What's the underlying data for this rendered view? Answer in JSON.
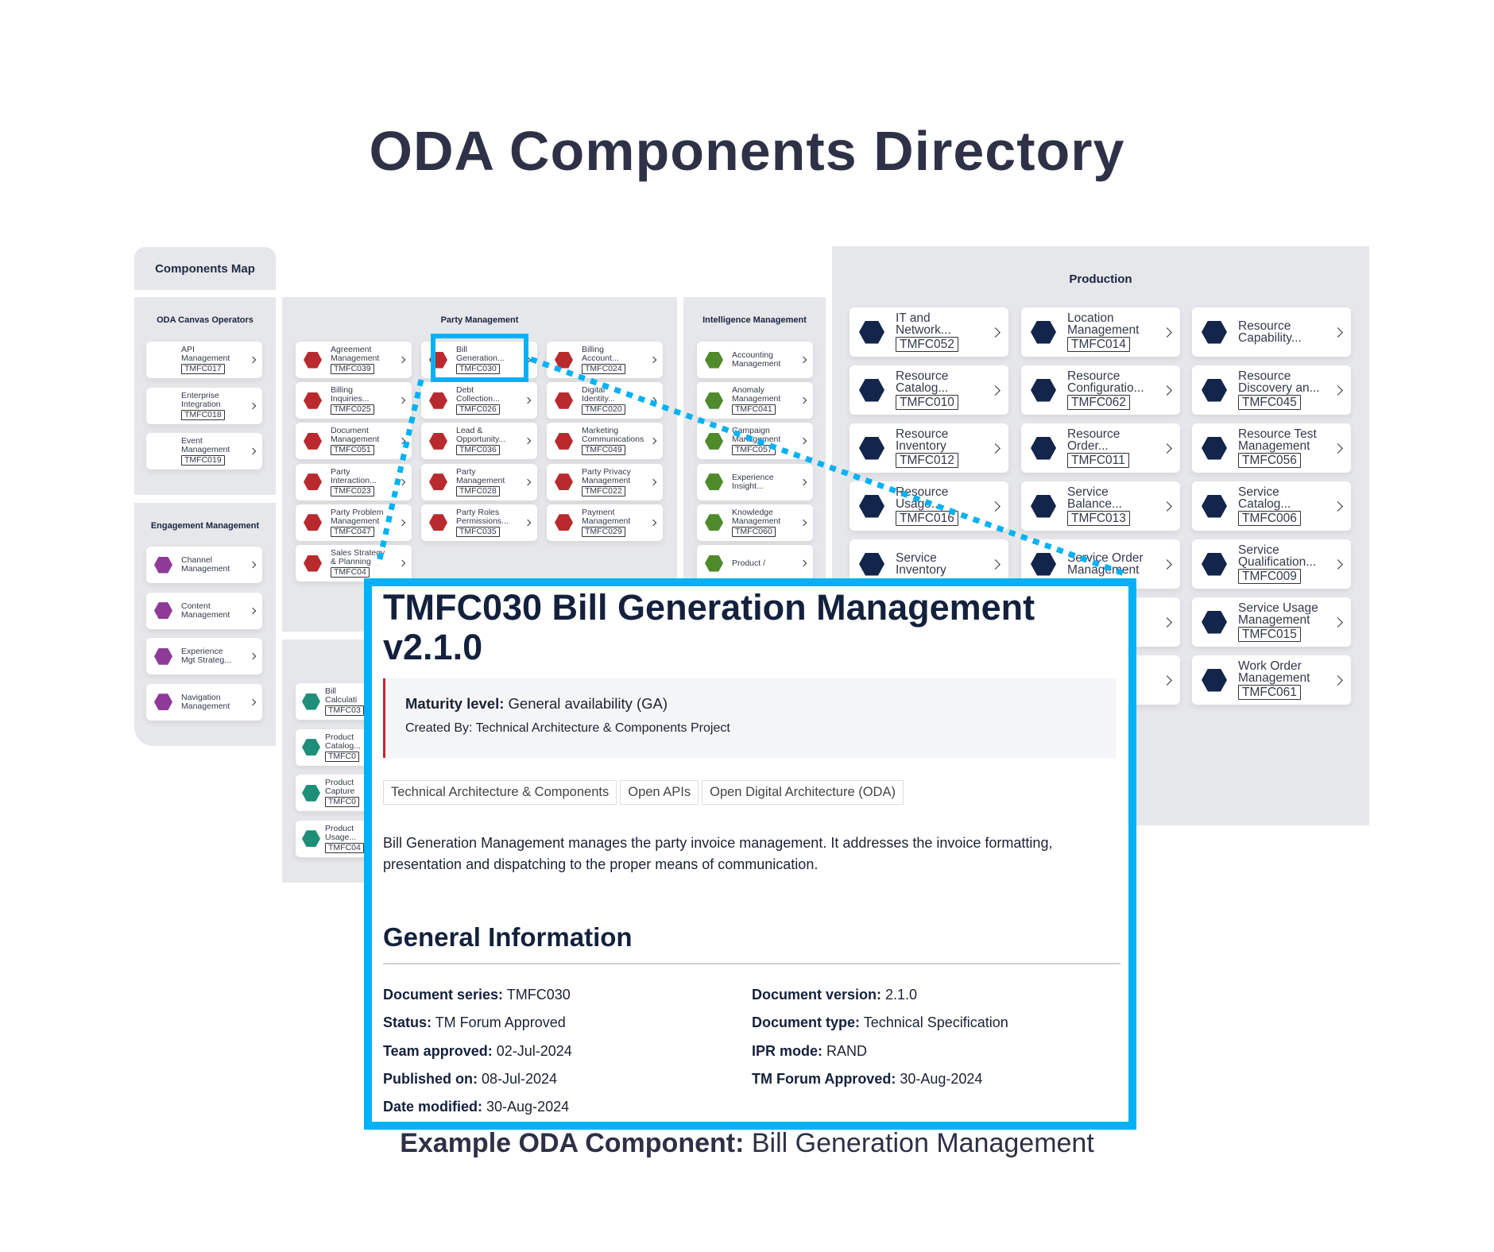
{
  "title": "ODA Components Directory",
  "tab_label": "Components Map",
  "colors": {
    "canvas": "#e2b92a",
    "engagement": "#8e3a99",
    "party": "#b92a2e",
    "intelligence": "#4f8a2b",
    "lower": "#1d8f78",
    "production": "#13254a",
    "accent": "#00b2f5"
  },
  "panels": {
    "oda": {
      "title": "ODA Canvas Operators",
      "items": [
        {
          "lines": [
            "API",
            "Management"
          ],
          "code": "TMFC017"
        },
        {
          "lines": [
            "Enterprise",
            "Integration"
          ],
          "code": "TMFC018"
        },
        {
          "lines": [
            "Event",
            "Management"
          ],
          "code": "TMFC019"
        }
      ]
    },
    "engagement": {
      "title": "Engagement Management",
      "items": [
        {
          "lines": [
            "Channel",
            "Management"
          ]
        },
        {
          "lines": [
            "Content",
            "Management"
          ]
        },
        {
          "lines": [
            "Experience",
            "Mgt Strateg..."
          ]
        },
        {
          "lines": [
            "Navigation",
            "Management"
          ]
        }
      ]
    },
    "party": {
      "title": "Party Management",
      "items": [
        {
          "lines": [
            "Agreement",
            "Management"
          ],
          "code": "TMFC039"
        },
        {
          "lines": [
            "Bill",
            "Generation..."
          ],
          "code": "TMFC030"
        },
        {
          "lines": [
            "Billing",
            "Account..."
          ],
          "code": "TMFC024"
        },
        {
          "lines": [
            "Billing",
            "Inquiries..."
          ],
          "code": "TMFC025"
        },
        {
          "lines": [
            "Debt",
            "Collection..."
          ],
          "code": "TMFC026"
        },
        {
          "lines": [
            "Digital",
            "Identity..."
          ],
          "code": "TMFC020"
        },
        {
          "lines": [
            "Document",
            "Management"
          ],
          "code": "TMFC051"
        },
        {
          "lines": [
            "Lead &",
            "Opportunity..."
          ],
          "code": "TMFC036"
        },
        {
          "lines": [
            "Marketing",
            "Communications"
          ],
          "code": "TMFC049"
        },
        {
          "lines": [
            "Party",
            "Interaction..."
          ],
          "code": "TMFC023"
        },
        {
          "lines": [
            "Party",
            "Management"
          ],
          "code": "TMFC028"
        },
        {
          "lines": [
            "Party Privacy",
            "Management"
          ],
          "code": "TMFC022"
        },
        {
          "lines": [
            "Party Problem",
            "Management"
          ],
          "code": "TMFC047"
        },
        {
          "lines": [
            "Party Roles",
            "Permissions..."
          ],
          "code": "TMFC035"
        },
        {
          "lines": [
            "Payment",
            "Management"
          ],
          "code": "TMFC029"
        },
        {
          "lines": [
            "Sales Strategy",
            "& Planning"
          ],
          "code": "TMFC04"
        }
      ]
    },
    "lower": {
      "items": [
        {
          "lines": [
            "Bill",
            "Calculati"
          ],
          "code": "TMFC03"
        },
        {
          "lines": [
            "Product",
            "Catalog..."
          ],
          "code": "TMFC0"
        },
        {
          "lines": [
            "Product",
            "Capture"
          ],
          "code": "TMFC0"
        },
        {
          "lines": [
            "Product",
            "Usage..."
          ],
          "code": "TMFC04"
        }
      ]
    },
    "intelligence": {
      "title": "Intelligence Management",
      "items": [
        {
          "lines": [
            "Accounting",
            "Management"
          ]
        },
        {
          "lines": [
            "Anomaly",
            "Management"
          ],
          "code": "TMFC041"
        },
        {
          "lines": [
            "Campaign",
            "Management"
          ],
          "code": "TMFC057"
        },
        {
          "lines": [
            "Experience",
            "Insight..."
          ]
        },
        {
          "lines": [
            "Knowledge",
            "Management"
          ],
          "code": "TMFC060"
        },
        {
          "lines": [
            "Product /"
          ]
        }
      ]
    },
    "production": {
      "title": "Production",
      "items": [
        {
          "lines": [
            "IT and",
            "Network..."
          ],
          "code": "TMFC052"
        },
        {
          "lines": [
            "Location",
            "Management"
          ],
          "code": "TMFC014"
        },
        {
          "lines": [
            "Resource",
            "Capability..."
          ]
        },
        {
          "lines": [
            "Resource",
            "Catalog..."
          ],
          "code": "TMFC010"
        },
        {
          "lines": [
            "Resource",
            "Configuratio..."
          ],
          "code": "TMFC062"
        },
        {
          "lines": [
            "Resource",
            "Discovery an..."
          ],
          "code": "TMFC045"
        },
        {
          "lines": [
            "Resource",
            "Inventory"
          ],
          "code": "TMFC012"
        },
        {
          "lines": [
            "Resource",
            "Order..."
          ],
          "code": "TMFC011"
        },
        {
          "lines": [
            "Resource Test",
            "Management"
          ],
          "code": "TMFC056"
        },
        {
          "lines": [
            "Resource",
            "Usage..."
          ],
          "code": "TMFC016"
        },
        {
          "lines": [
            "Service",
            "Balance..."
          ],
          "code": "TMFC013"
        },
        {
          "lines": [
            "Service",
            "Catalog..."
          ],
          "code": "TMFC006"
        },
        {
          "lines": [
            "Service",
            "Inventory"
          ]
        },
        {
          "lines": [
            "Service Order",
            "Management"
          ]
        },
        {
          "lines": [
            "Service",
            "Qualification..."
          ],
          "code": "TMFC009"
        },
        {
          "lines": []
        },
        {
          "lines": []
        },
        {
          "lines": [
            "Service Usage",
            "Management"
          ],
          "code": "TMFC015"
        },
        {
          "lines": []
        },
        {
          "lines": []
        },
        {
          "lines": [
            "Work Order",
            "Management"
          ],
          "code": "TMFC061"
        }
      ]
    }
  },
  "detail": {
    "title": "TMFC030 Bill Generation Management v2.1.0",
    "maturity_label": "Maturity level:",
    "maturity_value": " General availability (GA)",
    "created_by": "Created By: Technical Architecture & Components Project",
    "tags": [
      "Technical Architecture & Components",
      "Open APIs",
      "Open Digital Architecture (ODA)"
    ],
    "description": "Bill Generation Management manages the party invoice management. It addresses the invoice formatting, presentation and dispatching to the proper means of communication.",
    "section_title": "General Information",
    "info": [
      {
        "label": "Document series:",
        "value": " TMFC030"
      },
      {
        "label": "Document version:",
        "value": " 2.1.0"
      },
      {
        "label": "Status:",
        "value": " TM Forum Approved"
      },
      {
        "label": "Document type:",
        "value": " Technical Specification"
      },
      {
        "label": "Team approved:",
        "value": " 02-Jul-2024"
      },
      {
        "label": "IPR mode:",
        "value": " RAND"
      },
      {
        "label": "Published on:",
        "value": " 08-Jul-2024"
      },
      {
        "label": "TM Forum Approved:",
        "value": " 30-Aug-2024"
      },
      {
        "label": "Date modified:",
        "value": " 30-Aug-2024"
      }
    ]
  },
  "caption": {
    "bold": "Example ODA Component:",
    "rest": " Bill Generation Management"
  }
}
